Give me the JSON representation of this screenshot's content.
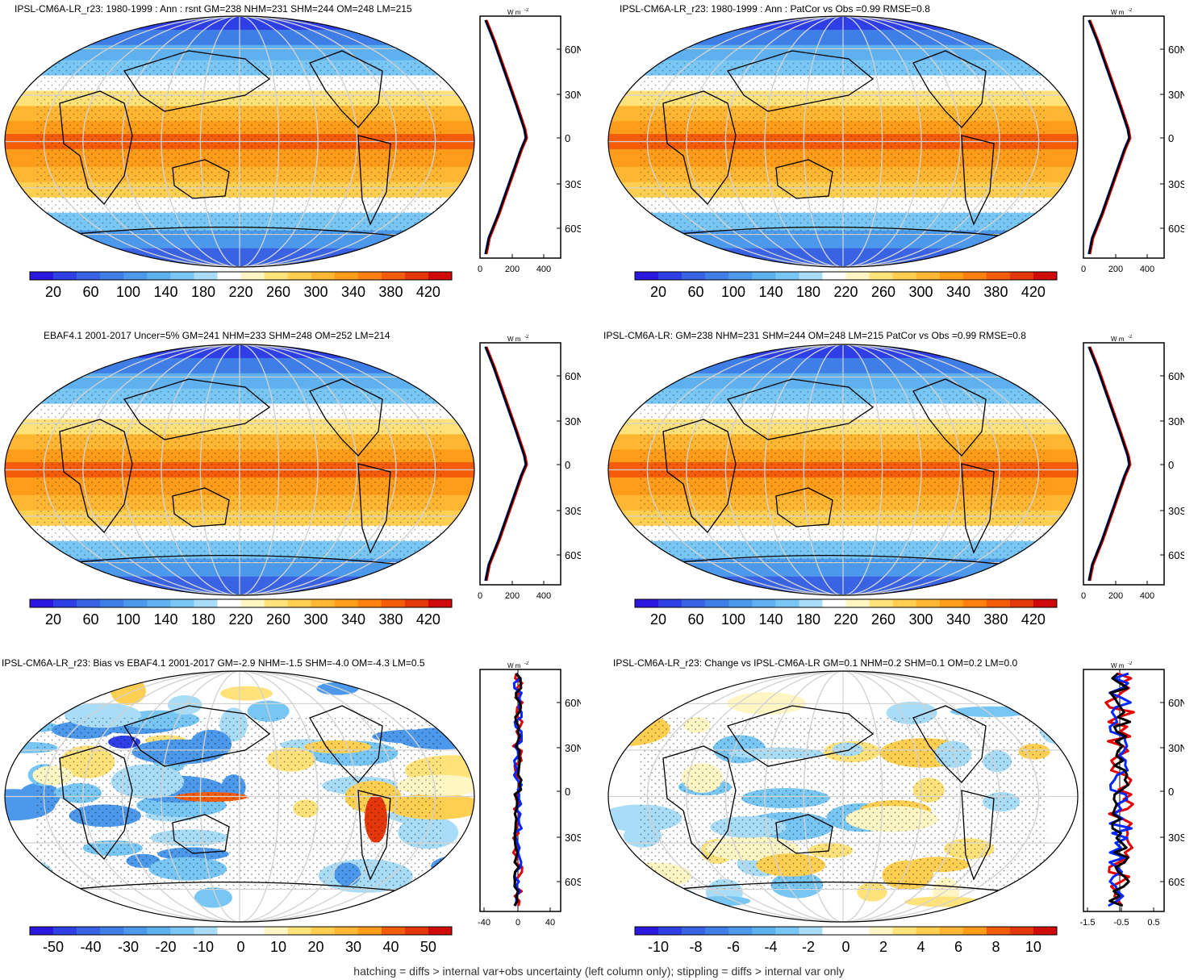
{
  "colors": {
    "sequential": [
      "#2b18e0",
      "#2f3fe6",
      "#3a63e4",
      "#3f7ee6",
      "#4c98ea",
      "#5eb0ee",
      "#77c6f3",
      "#a8dcf7",
      "#ffffff",
      "#fff6c4",
      "#ffe37a",
      "#ffcf52",
      "#ffb733",
      "#ff9d1a",
      "#ff7f0f",
      "#f45c0a",
      "#e5380a",
      "#cf0a0a"
    ],
    "diverging": [
      "#2b18e0",
      "#2f3fe6",
      "#3a63e4",
      "#3f7ee6",
      "#4c98ea",
      "#5eb0ee",
      "#77c6f3",
      "#a8dcf7",
      "#ffffff",
      "#ffffff",
      "#fff6c4",
      "#ffe37a",
      "#ffcf52",
      "#ffb733",
      "#ff9d1a",
      "#f45c0a",
      "#e5380a",
      "#cf0a0a"
    ],
    "model_line": "#e30000",
    "obs_line": "#0026ff",
    "mean_line": "#000000"
  },
  "panels": [
    {
      "title": "IPSL-CM6A-LR_r23: 1980-1999 : Ann : rsnt GM=238 NHM=231 SHM=244 OM=248 LM=215",
      "colorbar_ticks": [
        "20",
        "60",
        "100",
        "140",
        "180",
        "220",
        "260",
        "300",
        "340",
        "380",
        "420"
      ],
      "profile_unit": "W m",
      "profile_unit_exp": "-2",
      "lat_ticks": [
        "60N",
        "30N",
        "0",
        "30S",
        "60S"
      ],
      "x_ticks": [
        "0",
        "200",
        "400"
      ]
    },
    {
      "title": "IPSL-CM6A-LR_r23: 1980-1999 : Ann : PatCor vs Obs =0.99 RMSE=0.8",
      "colorbar_ticks": [
        "20",
        "60",
        "100",
        "140",
        "180",
        "220",
        "260",
        "300",
        "340",
        "380",
        "420"
      ],
      "profile_unit": "W m",
      "profile_unit_exp": "-2",
      "lat_ticks": [
        "60N",
        "30N",
        "0",
        "30S",
        "60S"
      ],
      "x_ticks": [
        "0",
        "200",
        "400"
      ]
    },
    {
      "title": "EBAF4.1 2001-2017 Uncer=5% GM=241 NHM=233 SHM=248 OM=252 LM=214",
      "colorbar_ticks": [
        "20",
        "60",
        "100",
        "140",
        "180",
        "220",
        "260",
        "300",
        "340",
        "380",
        "420"
      ],
      "profile_unit": "W m",
      "profile_unit_exp": "-2",
      "lat_ticks": [
        "60N",
        "30N",
        "0",
        "30S",
        "60S"
      ],
      "x_ticks": [
        "0",
        "200",
        "400"
      ]
    },
    {
      "title": "IPSL-CM6A-LR: GM=238 NHM=231 SHM=244 OM=248 LM=215 PatCor vs Obs =0.99 RMSE=0.8",
      "colorbar_ticks": [
        "20",
        "60",
        "100",
        "140",
        "180",
        "220",
        "260",
        "300",
        "340",
        "380",
        "420"
      ],
      "profile_unit": "W m",
      "profile_unit_exp": "-2",
      "lat_ticks": [
        "60N",
        "30N",
        "0",
        "30S",
        "60S"
      ],
      "x_ticks": [
        "0",
        "200",
        "400"
      ]
    },
    {
      "title": "IPSL-CM6A-LR_r23: Bias vs EBAF4.1 2001-2017 GM=-2.9 NHM=-1.5 SHM=-4.0 OM=-4.3 LM=0.5",
      "colorbar_ticks": [
        "-50",
        "-40",
        "-30",
        "-20",
        "-10",
        "0",
        "10",
        "20",
        "30",
        "40",
        "50"
      ],
      "profile_unit": "W m",
      "profile_unit_exp": "-2",
      "lat_ticks": [
        "60N",
        "30N",
        "0",
        "30S",
        "60S"
      ],
      "x_ticks": [
        "-40",
        "0",
        "40"
      ]
    },
    {
      "title": "IPSL-CM6A-LR_r23: Change vs IPSL-CM6A-LR GM=0.1 NHM=0.2 SHM=0.1 OM=0.2 LM=0.0",
      "colorbar_ticks": [
        "-10",
        "-8",
        "-6",
        "-4",
        "-2",
        "0",
        "2",
        "4",
        "6",
        "8",
        "10"
      ],
      "profile_unit": "W m",
      "profile_unit_exp": "-2",
      "lat_ticks": [
        "60N",
        "30N",
        "0",
        "30S",
        "60S"
      ],
      "x_ticks": [
        "-1.5",
        "-0.5",
        "0.5"
      ]
    }
  ],
  "footer": "hatching = diffs > internal var+obs uncertainty (left column only); stippling = diffs > internal var only"
}
